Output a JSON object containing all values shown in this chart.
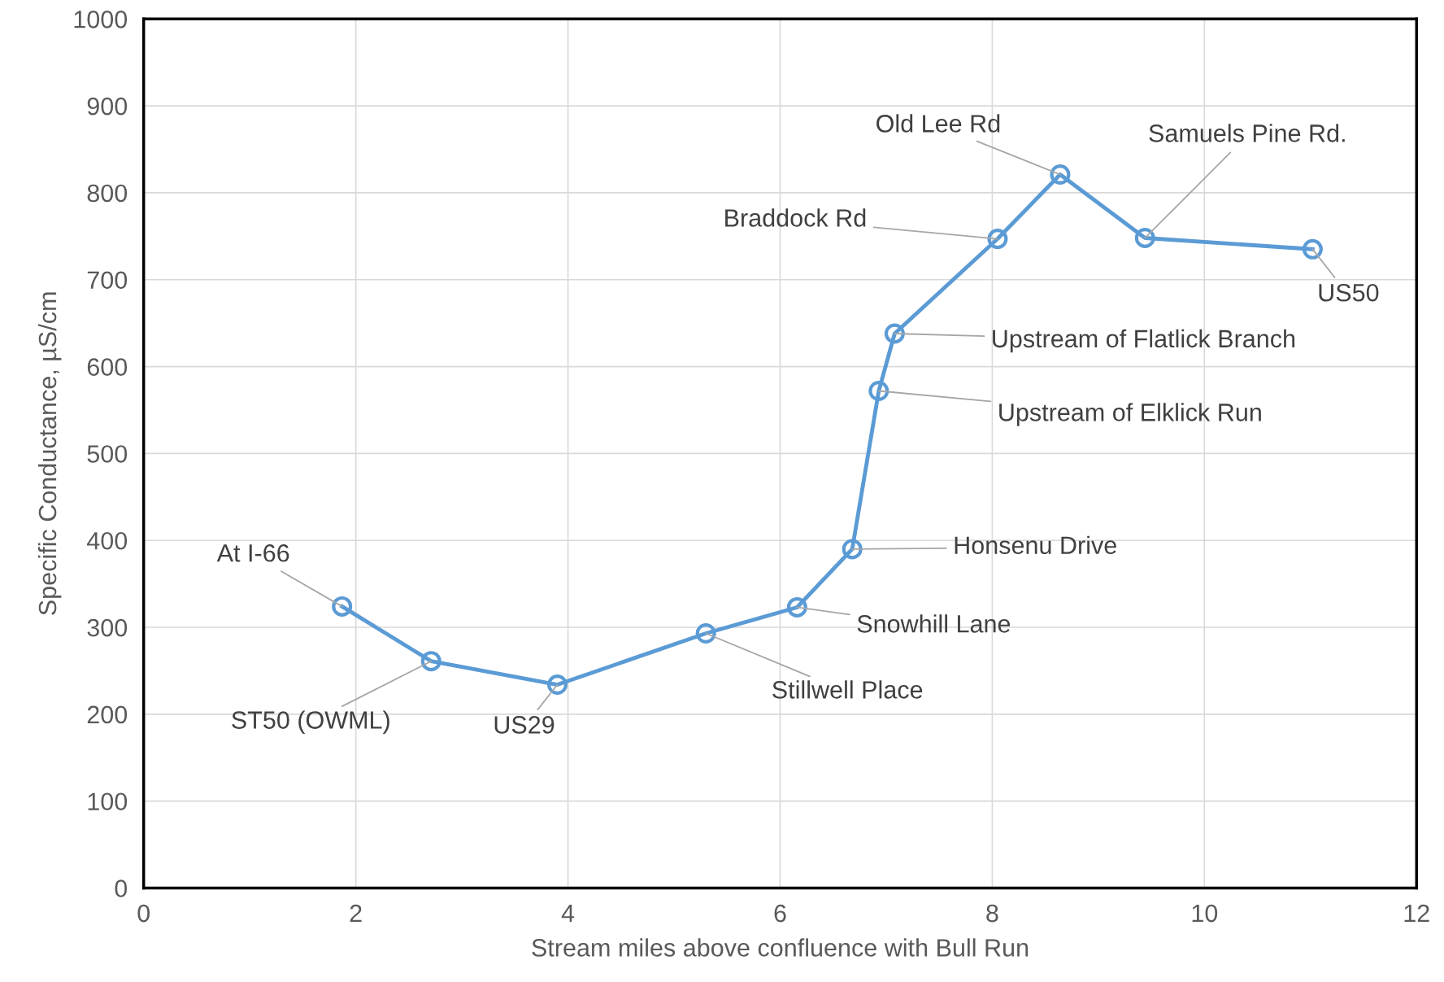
{
  "chart_data": {
    "type": "line",
    "xlabel": "Stream miles above confluence with Bull Run",
    "ylabel": "Specific Conductance, µS/cm",
    "x": [
      1.87,
      2.71,
      3.9,
      5.3,
      6.16,
      6.68,
      6.93,
      7.08,
      8.05,
      8.64,
      9.44,
      11.02
    ],
    "series": [
      {
        "color": "#5b9bd5",
        "values": [
          324,
          261,
          234,
          293,
          323,
          390,
          572,
          638,
          747,
          821,
          748,
          735
        ]
      }
    ],
    "xlim": [
      0,
      12
    ],
    "xticks": [
      0,
      2,
      4,
      6,
      8,
      10,
      12
    ],
    "ylim": [
      0,
      1000
    ],
    "yticks": [
      0,
      100,
      200,
      300,
      400,
      500,
      600,
      700,
      800,
      900,
      1000
    ],
    "grid": true,
    "marker": "circle",
    "line_style": "solid",
    "annotations": [
      {
        "text": "At I-66",
        "x": 1.87,
        "y": 324
      },
      {
        "text": "ST50 (OWML)",
        "x": 2.71,
        "y": 261
      },
      {
        "text": "US29",
        "x": 3.9,
        "y": 234
      },
      {
        "text": "Stillwell Place",
        "x": 5.3,
        "y": 293
      },
      {
        "text": "Snowhill Lane",
        "x": 6.16,
        "y": 323
      },
      {
        "text": "Honsenu Drive",
        "x": 6.68,
        "y": 390
      },
      {
        "text": "Upstream of Elklick Run",
        "x": 6.93,
        "y": 572
      },
      {
        "text": "Upstream of Flatlick Branch",
        "x": 7.08,
        "y": 638
      },
      {
        "text": "Braddock Rd",
        "x": 8.05,
        "y": 747
      },
      {
        "text": "Old Lee Rd",
        "x": 8.64,
        "y": 821
      },
      {
        "text": "Samuels Pine Rd.",
        "x": 9.44,
        "y": 748
      },
      {
        "text": "US50",
        "x": 11.02,
        "y": 735
      }
    ]
  }
}
